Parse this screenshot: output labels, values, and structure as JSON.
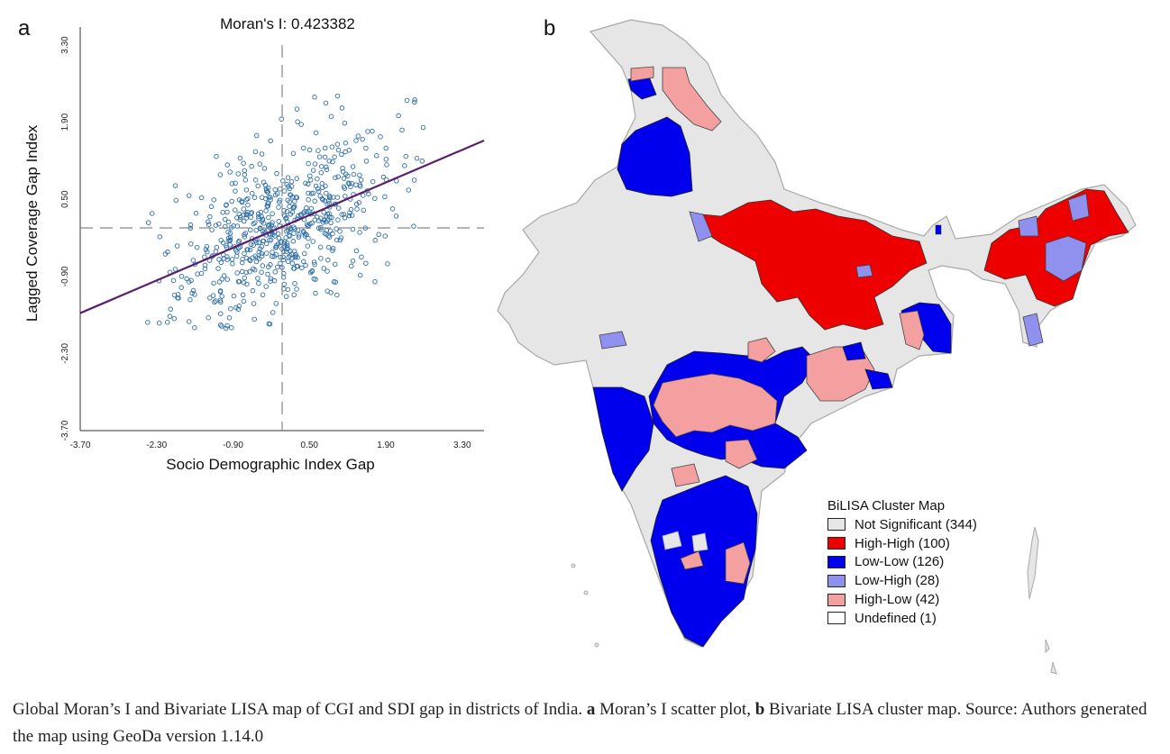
{
  "panel_a": {
    "letter": "a"
  },
  "panel_b": {
    "letter": "b"
  },
  "chart_data": {
    "type": "scatter",
    "title": "Moran's I: 0.423382",
    "xlabel": "Socio Demographic Index Gap",
    "ylabel": "Lagged Coverage Gap Index",
    "xlim": [
      -3.7,
      3.7
    ],
    "ylim": [
      -3.7,
      3.3
    ],
    "xticks": [
      "-3.70",
      "-2.30",
      "-0.90",
      "0.50",
      "1.90",
      "3.30"
    ],
    "yticks": [
      "3.30",
      "1.90",
      "0.50",
      "-0.90",
      "-2.30",
      "-3.70"
    ],
    "reference_lines": {
      "x": 0,
      "y": 0
    },
    "regression": {
      "slope": 0.4234,
      "intercept": 0,
      "color": "#5a1f6e"
    },
    "point_color": "#2f6ea8",
    "grid": false,
    "points_note_count": 640
  },
  "legend": {
    "title": "BiLISA Cluster Map",
    "items": [
      {
        "label": "Not Significant (344)",
        "color": "#e6e6e6"
      },
      {
        "label": "High-High (100)",
        "color": "#ee0000"
      },
      {
        "label": "Low-Low (126)",
        "color": "#0000ee"
      },
      {
        "label": "Low-High (28)",
        "color": "#9090ee"
      },
      {
        "label": "High-Low (42)",
        "color": "#f4a0a0"
      },
      {
        "label": "Undefined (1)",
        "color": "#ffffff"
      }
    ]
  },
  "caption": {
    "text1": "Global Moran’s I and Bivariate LISA map of CGI and SDI gap in districts of India. ",
    "bold_a": "a",
    "text2": " Moran’s I scatter plot, ",
    "bold_b": "b",
    "text3": " Bivariate LISA cluster map. Source: Authors generated the map using GeoDa version 1.14.0"
  }
}
